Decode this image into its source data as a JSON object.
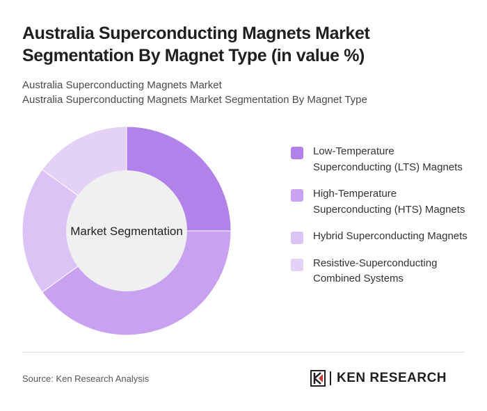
{
  "header": {
    "title": "Australia Superconducting Magnets Market Segmentation By Magnet Type (in value %)",
    "subtitle_1": "Australia Superconducting Magnets Market",
    "subtitle_2": "Australia Superconducting Magnets Market Segmentation By Magnet Type"
  },
  "chart_data": {
    "type": "pie",
    "donut": true,
    "center_label": "Market Segmentation",
    "categories": [
      "Low-Temperature Superconducting (LTS) Magnets",
      "High-Temperature Superconducting (HTS) Magnets",
      "Hybrid Superconducting Magnets",
      "Resistive-Superconducting Combined Systems"
    ],
    "values": [
      25,
      40,
      20,
      15
    ],
    "colors": [
      "#b182ea",
      "#c8a2f0",
      "#dcc3f5",
      "#e4d2f6"
    ],
    "legend_position": "right"
  },
  "footer": {
    "source": "Source: Ken Research Analysis",
    "logo_text": "KEN RESEARCH"
  }
}
